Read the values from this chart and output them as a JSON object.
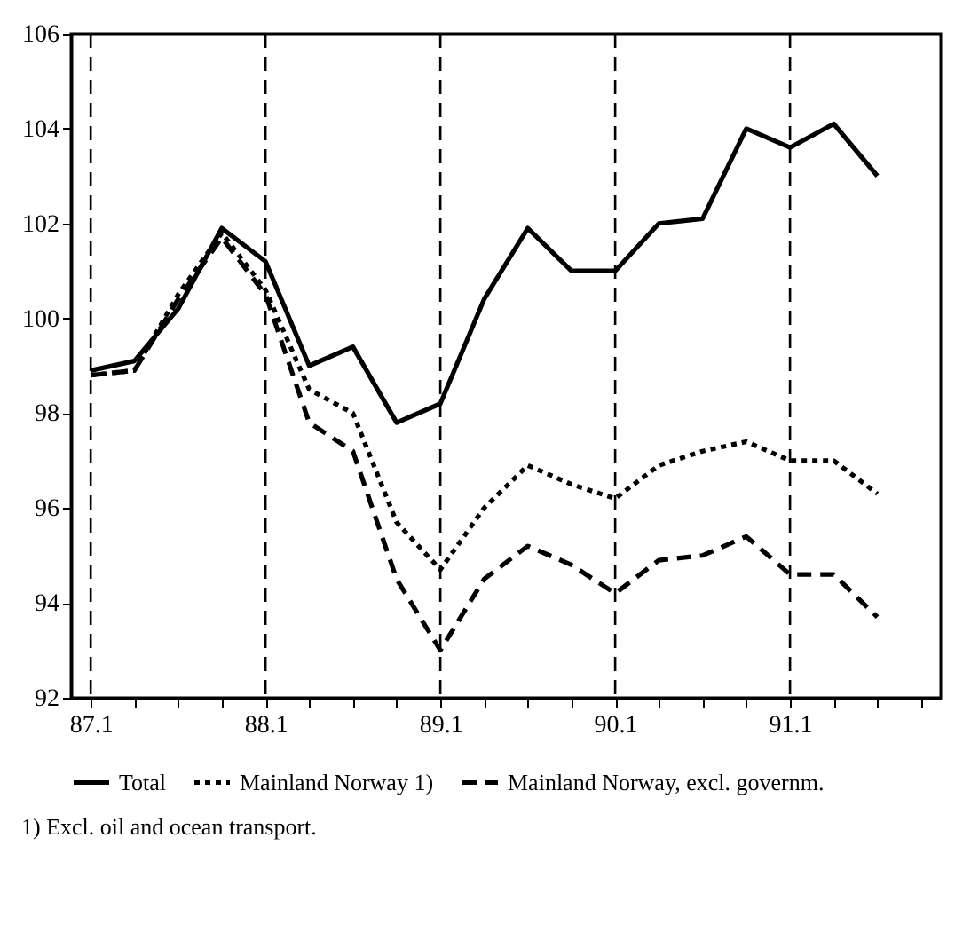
{
  "chart_data": {
    "type": "line",
    "categories": [
      "87.1",
      null,
      null,
      null,
      "88.1",
      null,
      null,
      null,
      "89.1",
      null,
      null,
      null,
      "90.1",
      null,
      null,
      null,
      "91.1",
      null,
      null,
      null
    ],
    "series": [
      {
        "name": "Total",
        "color": "#000000",
        "line_style": "solid",
        "values": [
          98.9,
          99.1,
          100.2,
          101.9,
          101.2,
          99.0,
          99.4,
          97.8,
          98.2,
          100.4,
          101.9,
          101.0,
          101.0,
          102.0,
          102.1,
          104.0,
          103.6,
          104.1,
          103.0,
          null
        ]
      },
      {
        "name": "Mainland Norway 1)",
        "color": "#000000",
        "line_style": "dotted",
        "values": [
          98.8,
          98.9,
          100.5,
          101.8,
          100.6,
          98.5,
          98.0,
          95.7,
          94.7,
          96.0,
          96.9,
          96.5,
          96.2,
          96.9,
          97.2,
          97.4,
          97.0,
          97.0,
          96.3,
          null
        ]
      },
      {
        "name": "Mainland Norway, excl. governm.",
        "color": "#000000",
        "line_style": "dashed",
        "values": [
          98.8,
          98.9,
          100.4,
          101.7,
          100.5,
          97.8,
          97.2,
          94.5,
          93.0,
          94.5,
          95.2,
          94.8,
          94.2,
          94.9,
          95.0,
          95.4,
          94.6,
          94.6,
          93.7,
          null
        ]
      }
    ],
    "ylim": [
      92,
      106
    ],
    "yticks": [
      92,
      94,
      96,
      98,
      100,
      102,
      104,
      106
    ],
    "ref_lines": [
      {
        "axis": "x",
        "value": "87.1",
        "line_style": "dashed"
      },
      {
        "axis": "x",
        "value": "88.1",
        "line_style": "dashed"
      },
      {
        "axis": "x",
        "value": "89.1",
        "line_style": "dashed"
      },
      {
        "axis": "x",
        "value": "90.1",
        "line_style": "dashed"
      },
      {
        "axis": "x",
        "value": "91.1",
        "line_style": "dashed"
      }
    ],
    "grid": false,
    "legend": "bottom",
    "annotations": [
      "1) Excl. oil and ocean transport."
    ]
  }
}
